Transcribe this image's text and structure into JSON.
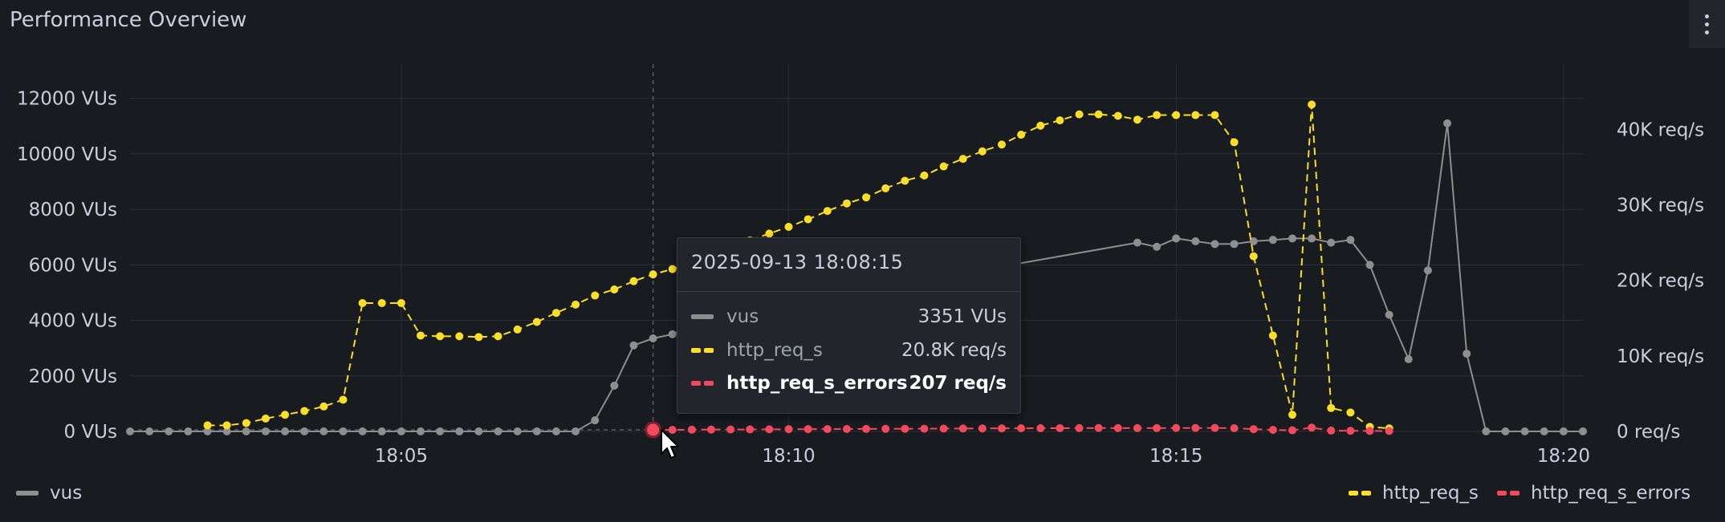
{
  "panel": {
    "title": "Performance Overview"
  },
  "colors": {
    "background": "#181b1f",
    "grid": "#2c2f35",
    "text": "#ccccdc",
    "vus": "#8e8e8e",
    "http_req_s": "#fade2a",
    "http_req_s_errors": "#f2495c"
  },
  "icons": {
    "menu": "kebab-menu-icon",
    "cursor": "mouse-pointer-icon"
  },
  "chart_data": {
    "type": "line",
    "title": "Performance Overview",
    "x_ticks": [
      "18:05",
      "18:10",
      "18:15",
      "18:20"
    ],
    "x_tick_minutes": [
      0,
      5,
      10,
      15
    ],
    "x_range_minutes": [
      -3.5,
      15.25
    ],
    "left_axis": {
      "ticks": [
        "0 VUs",
        "2000 VUs",
        "4000 VUs",
        "6000 VUs",
        "8000 VUs",
        "10000 VUs",
        "12000 VUs"
      ],
      "range": [
        0,
        13000
      ],
      "unit": "VUs"
    },
    "right_axis": {
      "ticks": [
        "0 req/s",
        "10K req/s",
        "20K req/s",
        "30K req/s",
        "40K req/s"
      ],
      "range": [
        0,
        47800
      ],
      "unit": "req/s"
    },
    "grid": true,
    "legend_placement": "bottom",
    "series": [
      {
        "name": "vus",
        "axis": "left",
        "style": "solid",
        "points": [
          [
            -3.5,
            0
          ],
          [
            -3.25,
            0
          ],
          [
            -3.0,
            0
          ],
          [
            -2.75,
            0
          ],
          [
            -2.5,
            0
          ],
          [
            -2.25,
            0
          ],
          [
            -2.0,
            0
          ],
          [
            -1.75,
            0
          ],
          [
            -1.5,
            0
          ],
          [
            -1.25,
            0
          ],
          [
            -1.0,
            0
          ],
          [
            -0.75,
            0
          ],
          [
            -0.5,
            0
          ],
          [
            -0.25,
            0
          ],
          [
            0.0,
            0
          ],
          [
            0.25,
            0
          ],
          [
            0.5,
            0
          ],
          [
            0.75,
            0
          ],
          [
            1.0,
            0
          ],
          [
            1.25,
            0
          ],
          [
            1.5,
            0
          ],
          [
            1.75,
            0
          ],
          [
            2.0,
            0
          ],
          [
            2.25,
            0
          ],
          [
            2.5,
            400
          ],
          [
            2.75,
            1650
          ],
          [
            3.0,
            3100
          ],
          [
            3.25,
            3351
          ],
          [
            3.5,
            3500
          ],
          [
            3.75,
            3800
          ],
          [
            4.0,
            4100
          ],
          [
            9.5,
            6800
          ],
          [
            9.75,
            6650
          ],
          [
            10.0,
            6950
          ],
          [
            10.25,
            6850
          ],
          [
            10.5,
            6750
          ],
          [
            10.75,
            6750
          ],
          [
            11.0,
            6850
          ],
          [
            11.25,
            6900
          ],
          [
            11.5,
            6950
          ],
          [
            11.75,
            6950
          ],
          [
            12.0,
            6800
          ],
          [
            12.25,
            6900
          ],
          [
            12.5,
            6000
          ],
          [
            12.75,
            4200
          ],
          [
            13.0,
            2600
          ],
          [
            13.25,
            5800
          ],
          [
            13.5,
            11100
          ],
          [
            13.75,
            2800
          ],
          [
            14.0,
            0
          ],
          [
            14.25,
            0
          ],
          [
            14.5,
            0
          ],
          [
            14.75,
            0
          ],
          [
            15.0,
            0
          ],
          [
            15.25,
            0
          ]
        ]
      },
      {
        "name": "http_req_s",
        "axis": "right",
        "style": "dashed",
        "points": [
          [
            -2.5,
            800
          ],
          [
            -2.25,
            800
          ],
          [
            -2.0,
            1100
          ],
          [
            -1.75,
            1700
          ],
          [
            -1.5,
            2200
          ],
          [
            -1.25,
            2700
          ],
          [
            -1.0,
            3300
          ],
          [
            -0.75,
            4200
          ],
          [
            -0.5,
            17000
          ],
          [
            -0.25,
            17000
          ],
          [
            0.0,
            17000
          ],
          [
            0.25,
            12700
          ],
          [
            0.5,
            12600
          ],
          [
            0.75,
            12600
          ],
          [
            1.0,
            12500
          ],
          [
            1.25,
            12600
          ],
          [
            1.5,
            13500
          ],
          [
            1.75,
            14500
          ],
          [
            2.0,
            15700
          ],
          [
            2.25,
            16800
          ],
          [
            2.5,
            18000
          ],
          [
            2.75,
            18800
          ],
          [
            3.0,
            19900
          ],
          [
            3.25,
            20800
          ],
          [
            3.5,
            21500
          ],
          [
            3.75,
            22300
          ],
          [
            4.0,
            23300
          ],
          [
            4.25,
            24300
          ],
          [
            4.5,
            25300
          ],
          [
            4.75,
            26200
          ],
          [
            5.0,
            27100
          ],
          [
            5.25,
            28100
          ],
          [
            5.5,
            29200
          ],
          [
            5.75,
            30200
          ],
          [
            6.0,
            31000
          ],
          [
            6.25,
            32200
          ],
          [
            6.5,
            33200
          ],
          [
            6.75,
            33900
          ],
          [
            7.0,
            35100
          ],
          [
            7.25,
            36100
          ],
          [
            7.5,
            37100
          ],
          [
            7.75,
            38000
          ],
          [
            8.0,
            39300
          ],
          [
            8.25,
            40500
          ],
          [
            8.5,
            41200
          ],
          [
            8.75,
            42000
          ],
          [
            9.0,
            42000
          ],
          [
            9.25,
            41800
          ],
          [
            9.5,
            41300
          ],
          [
            9.75,
            41900
          ],
          [
            10.0,
            41900
          ],
          [
            10.25,
            41900
          ],
          [
            10.5,
            41900
          ],
          [
            10.75,
            38300
          ],
          [
            11.0,
            23200
          ],
          [
            11.25,
            12700
          ],
          [
            11.5,
            2200
          ],
          [
            11.75,
            43300
          ],
          [
            12.0,
            3100
          ],
          [
            12.25,
            2500
          ],
          [
            12.5,
            600
          ],
          [
            12.75,
            400
          ]
        ]
      },
      {
        "name": "http_req_s_errors",
        "axis": "right",
        "style": "dashed",
        "points": [
          [
            3.25,
            207
          ],
          [
            3.5,
            200
          ],
          [
            3.75,
            220
          ],
          [
            4.0,
            240
          ],
          [
            4.25,
            250
          ],
          [
            4.5,
            260
          ],
          [
            4.75,
            280
          ],
          [
            5.0,
            290
          ],
          [
            5.25,
            300
          ],
          [
            5.5,
            310
          ],
          [
            5.75,
            320
          ],
          [
            6.0,
            330
          ],
          [
            6.25,
            340
          ],
          [
            6.5,
            350
          ],
          [
            6.75,
            360
          ],
          [
            7.0,
            370
          ],
          [
            7.25,
            380
          ],
          [
            7.5,
            390
          ],
          [
            7.75,
            400
          ],
          [
            8.0,
            410
          ],
          [
            8.25,
            420
          ],
          [
            8.5,
            430
          ],
          [
            8.75,
            440
          ],
          [
            9.0,
            450
          ],
          [
            9.25,
            440
          ],
          [
            9.5,
            440
          ],
          [
            9.75,
            440
          ],
          [
            10.0,
            450
          ],
          [
            10.25,
            450
          ],
          [
            10.5,
            460
          ],
          [
            10.75,
            420
          ],
          [
            11.0,
            300
          ],
          [
            11.25,
            200
          ],
          [
            11.5,
            150
          ],
          [
            11.75,
            500
          ],
          [
            12.0,
            100
          ],
          [
            12.25,
            80
          ],
          [
            12.5,
            60
          ],
          [
            12.75,
            50
          ]
        ]
      }
    ],
    "hover_x": 3.25
  },
  "tooltip": {
    "time": "2025-09-13 18:08:15",
    "rows": [
      {
        "name": "vus",
        "value": "3351 VUs"
      },
      {
        "name": "http_req_s",
        "value": "20.8K req/s"
      },
      {
        "name": "http_req_s_errors",
        "value": "207 req/s"
      }
    ]
  },
  "legend": {
    "vus": "vus",
    "http_req_s": "http_req_s",
    "http_req_s_errors": "http_req_s_errors"
  }
}
